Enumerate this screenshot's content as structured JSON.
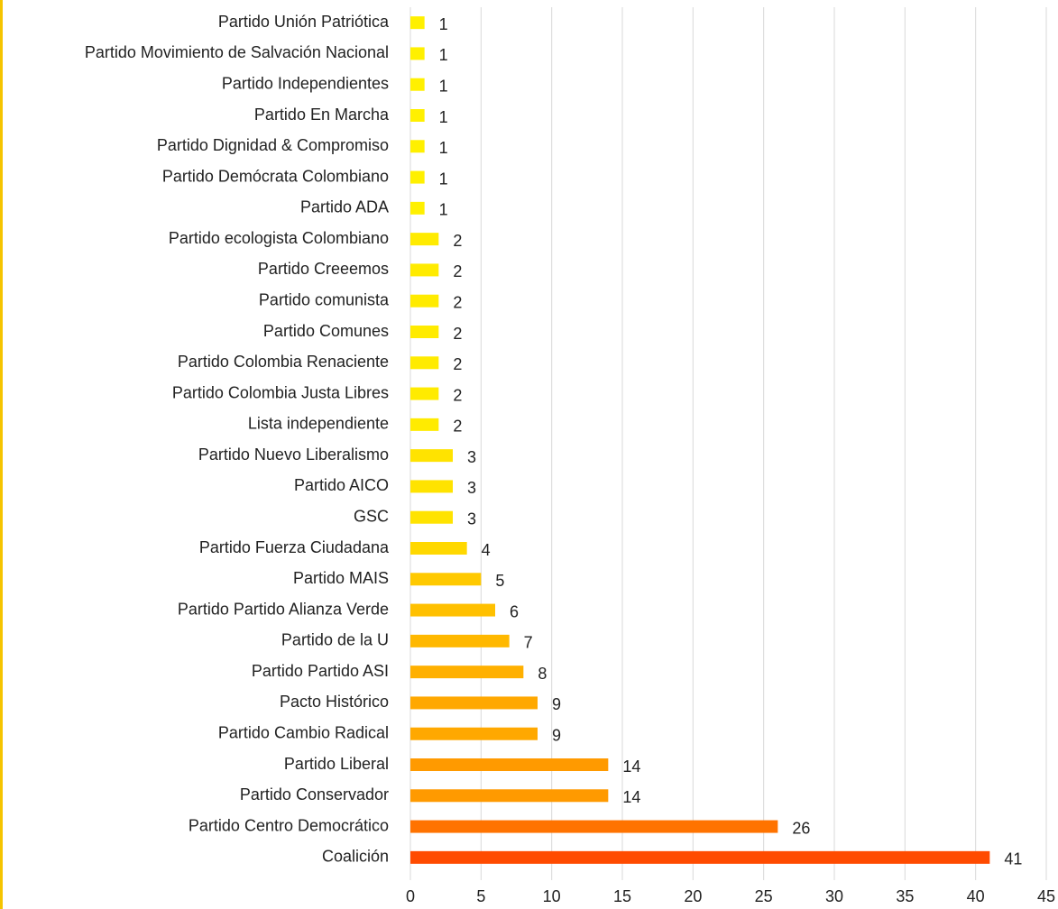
{
  "chart_data": {
    "type": "barh",
    "categories": [
      "Partido Unión Patriótica",
      "Partido Movimiento de Salvación Nacional",
      "Partido Independientes",
      "Partido En Marcha",
      "Partido Dignidad & Compromiso",
      "Partido Demócrata Colombiano",
      "Partido ADA",
      "Partido ecologista Colombiano",
      "Partido Creeemos",
      "Partido comunista",
      "Partido Comunes",
      "Partido Colombia Renaciente",
      "Partido Colombia Justa Libres",
      "Lista independiente",
      "Partido Nuevo Liberalismo",
      "Partido AICO",
      "GSC",
      "Partido Fuerza Ciudadana",
      "Partido MAIS",
      "Partido Partido Alianza Verde",
      "Partido de la U",
      "Partido Partido ASI",
      "Pacto Histórico",
      "Partido Cambio Radical",
      "Partido Liberal",
      "Partido Conservador",
      "Partido Centro Democrático",
      "Coalición"
    ],
    "values": [
      1,
      1,
      1,
      1,
      1,
      1,
      1,
      2,
      2,
      2,
      2,
      2,
      2,
      2,
      3,
      3,
      3,
      4,
      5,
      6,
      7,
      8,
      9,
      9,
      14,
      14,
      26,
      41
    ],
    "colors": [
      "#fff000",
      "#fff000",
      "#fff000",
      "#fff000",
      "#fff000",
      "#fff000",
      "#fff000",
      "#ffeb00",
      "#ffeb00",
      "#ffeb00",
      "#ffeb00",
      "#ffeb00",
      "#ffeb00",
      "#ffeb00",
      "#ffe300",
      "#ffe300",
      "#ffe300",
      "#ffd800",
      "#ffc900",
      "#ffc000",
      "#ffb800",
      "#ffb000",
      "#ffa800",
      "#ffa800",
      "#ff9a00",
      "#ff9a00",
      "#ff7300",
      "#ff4b00"
    ],
    "xlim": [
      0,
      45
    ],
    "xticks": [
      0,
      5,
      10,
      15,
      20,
      25,
      30,
      35,
      40,
      45
    ],
    "grid": true
  }
}
